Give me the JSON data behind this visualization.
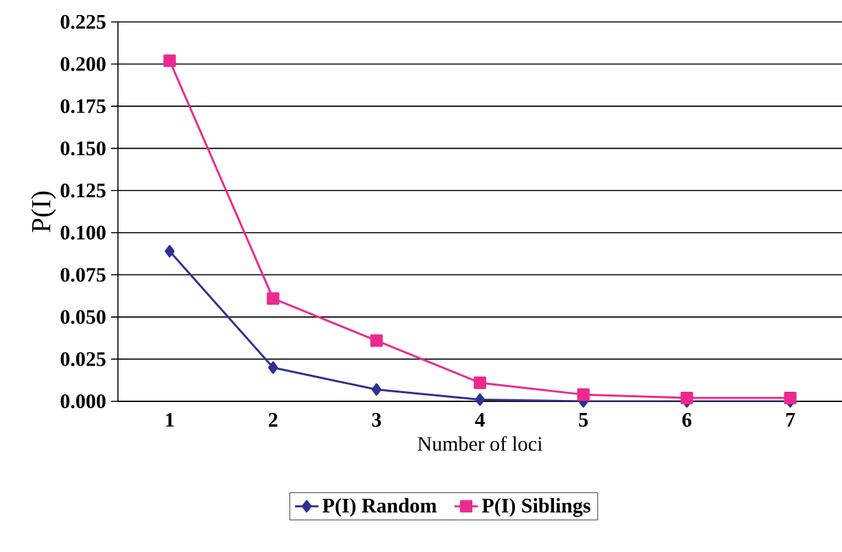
{
  "chart_data": {
    "type": "line",
    "xlabel": "Number of loci",
    "ylabel": "P(I)",
    "categories": [
      "1",
      "2",
      "3",
      "4",
      "5",
      "6",
      "7"
    ],
    "series": [
      {
        "name": "P(I) Random",
        "color": "#2e3192",
        "marker": "diamond",
        "values": [
          0.089,
          0.02,
          0.007,
          0.001,
          0.0,
          0.0,
          0.0
        ]
      },
      {
        "name": "P(I) Siblings",
        "color": "#ec2a8e",
        "marker": "square",
        "values": [
          0.202,
          0.061,
          0.036,
          0.011,
          0.004,
          0.002,
          0.002
        ]
      }
    ],
    "ylim": [
      0,
      0.225
    ],
    "yticks": [
      {
        "value": 0,
        "label": "0.000"
      },
      {
        "value": 0.025,
        "label": "0.025"
      },
      {
        "value": 0.05,
        "label": "0.050"
      },
      {
        "value": 0.075,
        "label": "0.075"
      },
      {
        "value": 0.1,
        "label": "0.100"
      },
      {
        "value": 0.125,
        "label": "0.125"
      },
      {
        "value": 0.15,
        "label": "0.150"
      },
      {
        "value": 0.175,
        "label": "0.175"
      },
      {
        "value": 0.2,
        "label": "0.200"
      },
      {
        "value": 0.225,
        "label": "0.225"
      }
    ],
    "grid": "y",
    "legend": "bottom",
    "line_style": "solid"
  }
}
